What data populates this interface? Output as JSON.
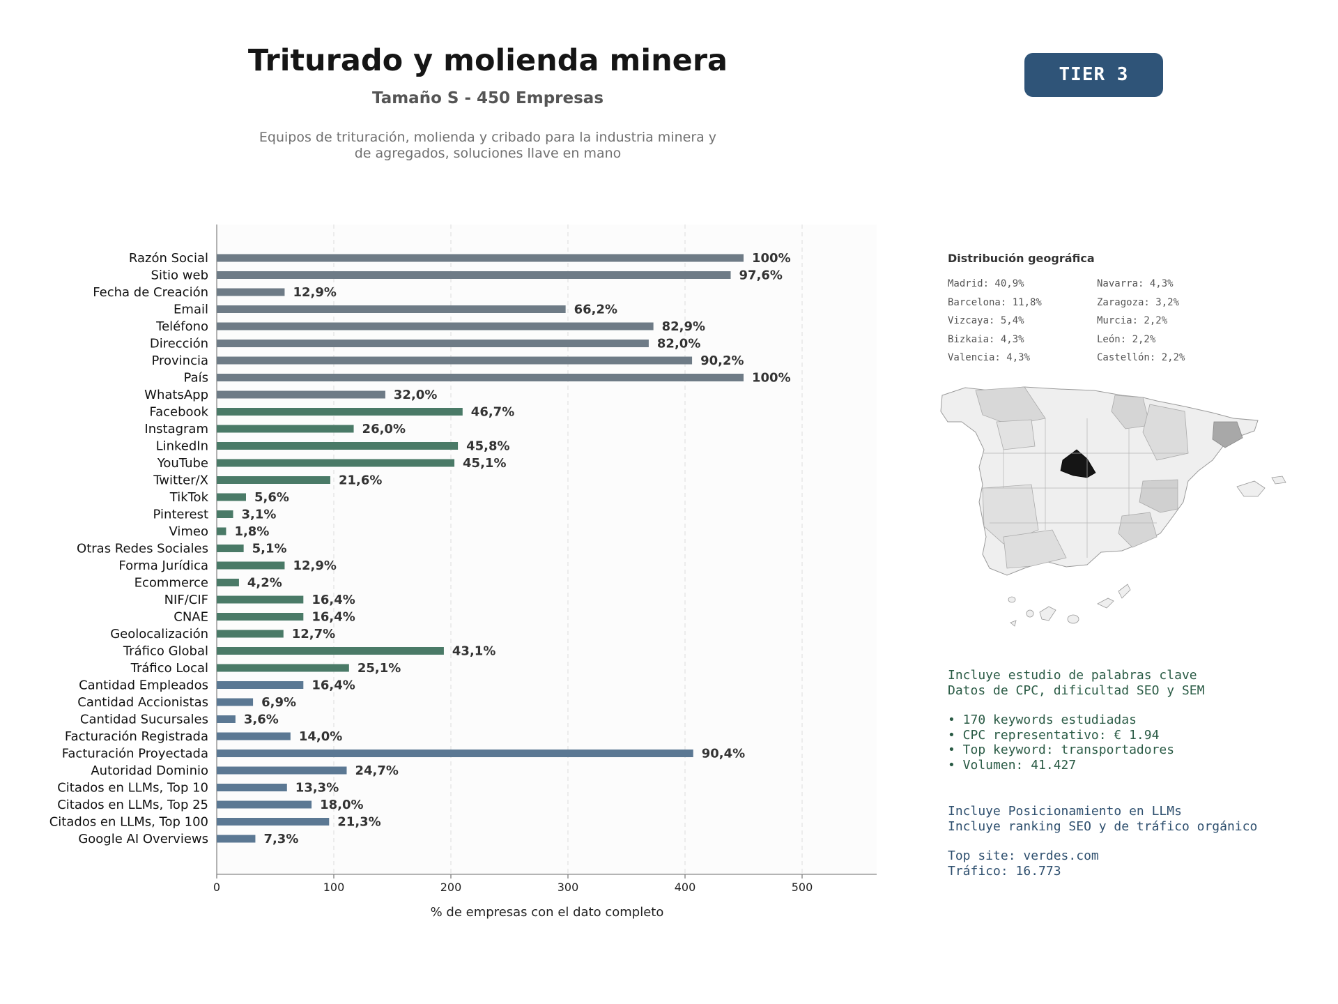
{
  "header": {
    "title": "Triturado y molienda minera",
    "subtitle": "Tamaño S - 450 Empresas",
    "description_line1": "Equipos de trituración, molienda y cribado para la industria minera y",
    "description_line2": "de agregados, soluciones llave en mano",
    "tier": "TIER 3"
  },
  "chart_data": {
    "type": "bar",
    "orientation": "horizontal",
    "xlabel": "% de empresas con el dato completo",
    "xlim": [
      0,
      560
    ],
    "xticks": [
      0,
      100,
      200,
      300,
      400,
      500
    ],
    "grid": "vertical dashed",
    "colors": {
      "group1": "#6e7b86",
      "group2": "#4a7a67",
      "group3": "#5b7893"
    },
    "categories": [
      "Razón Social",
      "Sitio web",
      "Fecha de Creación",
      "Email",
      "Teléfono",
      "Dirección",
      "Provincia",
      "País",
      "WhatsApp",
      "Facebook",
      "Instagram",
      "LinkedIn",
      "YouTube",
      "Twitter/X",
      "TikTok",
      "Pinterest",
      "Vimeo",
      "Otras Redes Sociales",
      "Forma Jurídica",
      "Ecommerce",
      "NIF/CIF",
      "CNAE",
      "Geolocalización",
      "Tráfico Global",
      "Tráfico Local",
      "Cantidad Empleados",
      "Cantidad Accionistas",
      "Cantidad Sucursales",
      "Facturación Registrada",
      "Facturación Proyectada",
      "Autoridad Dominio",
      "Citados en LLMs, Top 10",
      "Citados en LLMs, Top 25",
      "Citados en LLMs, Top 100",
      "Google AI Overviews"
    ],
    "values": [
      450,
      439,
      58,
      298,
      373,
      369,
      406,
      450,
      144,
      210,
      117,
      206,
      203,
      97,
      25,
      14,
      8,
      23,
      58,
      19,
      74,
      74,
      57,
      194,
      113,
      74,
      31,
      16,
      63,
      407,
      111,
      60,
      81,
      96,
      33
    ],
    "labels": [
      "100%",
      "97,6%",
      "12,9%",
      "66,2%",
      "82,9%",
      "82,0%",
      "90,2%",
      "100%",
      "32,0%",
      "46,7%",
      "26,0%",
      "45,8%",
      "45,1%",
      "21,6%",
      "5,6%",
      "3,1%",
      "1,8%",
      "5,1%",
      "12,9%",
      "4,2%",
      "16,4%",
      "16,4%",
      "12,7%",
      "43,1%",
      "25,1%",
      "16,4%",
      "6,9%",
      "3,6%",
      "14,0%",
      "90,4%",
      "24,7%",
      "13,3%",
      "18,0%",
      "21,3%",
      "7,3%"
    ],
    "groups": [
      1,
      1,
      1,
      1,
      1,
      1,
      1,
      1,
      1,
      2,
      2,
      2,
      2,
      2,
      2,
      2,
      2,
      2,
      2,
      2,
      2,
      2,
      2,
      2,
      2,
      3,
      3,
      3,
      3,
      3,
      3,
      3,
      3,
      3,
      3
    ]
  },
  "geo": {
    "title": "Distribución geográfica",
    "left": [
      "Madrid: 40,9%",
      "Barcelona: 11,8%",
      "Vizcaya: 5,4%",
      "Bizkaia: 4,3%",
      "Valencia: 4,3%"
    ],
    "right": [
      "Navarra: 4,3%",
      "Zaragoza: 3,2%",
      "Murcia: 2,2%",
      "León: 2,2%",
      "Castellón: 2,2%"
    ]
  },
  "info": {
    "keywords_line1": "Incluye estudio de palabras clave",
    "keywords_line2": "Datos de CPC, dificultad SEO y SEM",
    "bullet1": "• 170 keywords estudiadas",
    "bullet2": "• CPC representativo: € 1.94",
    "bullet3": "• Top keyword: transportadores",
    "bullet4": "• Volumen: 41.427",
    "llm_line1": "Incluye Posicionamiento en LLMs",
    "llm_line2": "Incluye ranking SEO y de tráfico orgánico",
    "top_site": "Top site: verdes.com",
    "traffic": "Tráfico: 16.773"
  }
}
